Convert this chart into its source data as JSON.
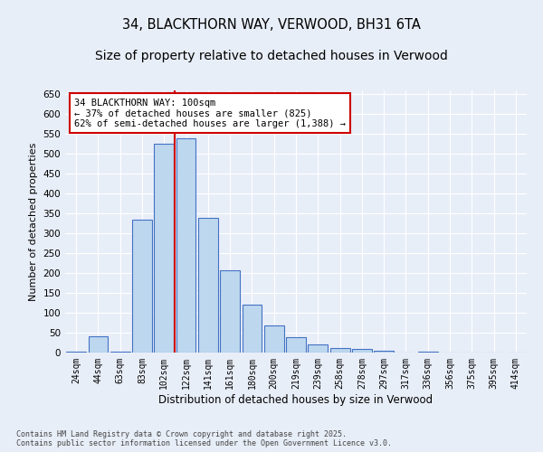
{
  "title": "34, BLACKTHORN WAY, VERWOOD, BH31 6TA",
  "subtitle": "Size of property relative to detached houses in Verwood",
  "xlabel": "Distribution of detached houses by size in Verwood",
  "ylabel": "Number of detached properties",
  "categories": [
    "24sqm",
    "44sqm",
    "63sqm",
    "83sqm",
    "102sqm",
    "122sqm",
    "141sqm",
    "161sqm",
    "180sqm",
    "200sqm",
    "219sqm",
    "239sqm",
    "258sqm",
    "278sqm",
    "297sqm",
    "317sqm",
    "336sqm",
    "356sqm",
    "375sqm",
    "395sqm",
    "414sqm"
  ],
  "values": [
    2,
    40,
    2,
    335,
    525,
    540,
    340,
    208,
    120,
    68,
    38,
    20,
    12,
    10,
    4,
    0,
    3,
    0,
    0,
    0,
    1
  ],
  "bar_color": "#bdd7ee",
  "bar_edge_color": "#4472c4",
  "vline_x_index": 4.5,
  "vline_color": "#cc0000",
  "annotation_line1": "34 BLACKTHORN WAY: 100sqm",
  "annotation_line2": "← 37% of detached houses are smaller (825)",
  "annotation_line3": "62% of semi-detached houses are larger (1,388) →",
  "annotation_box_color": "#ffffff",
  "annotation_box_edge": "#cc0000",
  "ylim": [
    0,
    660
  ],
  "yticks": [
    0,
    50,
    100,
    150,
    200,
    250,
    300,
    350,
    400,
    450,
    500,
    550,
    600,
    650
  ],
  "footer_line1": "Contains HM Land Registry data © Crown copyright and database right 2025.",
  "footer_line2": "Contains public sector information licensed under the Open Government Licence v3.0.",
  "bg_color": "#e8eef8",
  "grid_color": "#ffffff",
  "title_fontsize": 10.5,
  "tick_fontsize": 7,
  "ylabel_fontsize": 8,
  "xlabel_fontsize": 8.5
}
